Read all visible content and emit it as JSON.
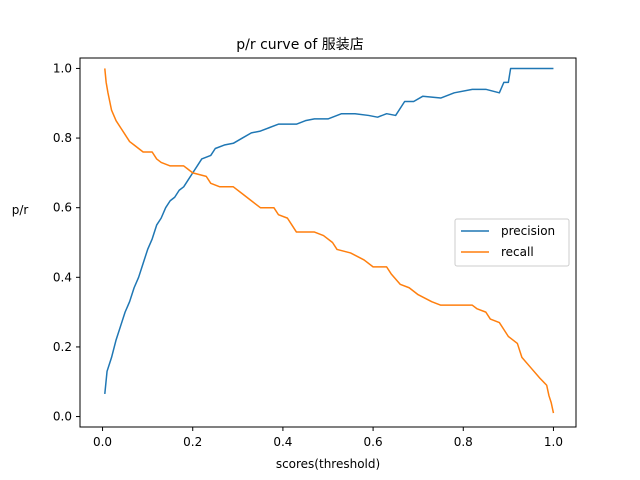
{
  "chart_data": {
    "type": "line",
    "title": "p/r curve of 服装店",
    "xlabel": "scores(threshold)",
    "ylabel": "p/r",
    "xlim": [
      -0.05,
      1.05
    ],
    "ylim": [
      -0.03,
      1.03
    ],
    "xticks": [
      0.0,
      0.2,
      0.4,
      0.6,
      0.8,
      1.0
    ],
    "xtick_labels": [
      "0.0",
      "0.2",
      "0.4",
      "0.6",
      "0.8",
      "1.0"
    ],
    "yticks": [
      0.0,
      0.2,
      0.4,
      0.6,
      0.8,
      1.0
    ],
    "ytick_labels": [
      "0.0",
      "0.2",
      "0.4",
      "0.6",
      "0.8",
      "1.0"
    ],
    "grid": false,
    "legend_position": "center-right",
    "series": [
      {
        "name": "precision",
        "color": "#1f77b4",
        "points": [
          [
            0.005,
            0.065
          ],
          [
            0.01,
            0.13
          ],
          [
            0.02,
            0.17
          ],
          [
            0.03,
            0.22
          ],
          [
            0.04,
            0.26
          ],
          [
            0.05,
            0.3
          ],
          [
            0.06,
            0.33
          ],
          [
            0.07,
            0.37
          ],
          [
            0.08,
            0.4
          ],
          [
            0.09,
            0.44
          ],
          [
            0.1,
            0.48
          ],
          [
            0.11,
            0.51
          ],
          [
            0.12,
            0.55
          ],
          [
            0.13,
            0.57
          ],
          [
            0.14,
            0.6
          ],
          [
            0.15,
            0.62
          ],
          [
            0.16,
            0.63
          ],
          [
            0.17,
            0.65
          ],
          [
            0.18,
            0.66
          ],
          [
            0.19,
            0.68
          ],
          [
            0.2,
            0.7
          ],
          [
            0.21,
            0.72
          ],
          [
            0.22,
            0.74
          ],
          [
            0.24,
            0.75
          ],
          [
            0.25,
            0.77
          ],
          [
            0.27,
            0.78
          ],
          [
            0.29,
            0.785
          ],
          [
            0.31,
            0.8
          ],
          [
            0.33,
            0.815
          ],
          [
            0.35,
            0.82
          ],
          [
            0.37,
            0.83
          ],
          [
            0.39,
            0.84
          ],
          [
            0.41,
            0.84
          ],
          [
            0.43,
            0.84
          ],
          [
            0.45,
            0.85
          ],
          [
            0.47,
            0.855
          ],
          [
            0.5,
            0.855
          ],
          [
            0.51,
            0.86
          ],
          [
            0.53,
            0.87
          ],
          [
            0.56,
            0.87
          ],
          [
            0.59,
            0.865
          ],
          [
            0.61,
            0.86
          ],
          [
            0.63,
            0.87
          ],
          [
            0.65,
            0.865
          ],
          [
            0.67,
            0.905
          ],
          [
            0.69,
            0.905
          ],
          [
            0.71,
            0.92
          ],
          [
            0.75,
            0.915
          ],
          [
            0.78,
            0.93
          ],
          [
            0.82,
            0.94
          ],
          [
            0.85,
            0.94
          ],
          [
            0.88,
            0.93
          ],
          [
            0.89,
            0.96
          ],
          [
            0.9,
            0.96
          ],
          [
            0.905,
            1.0
          ],
          [
            0.95,
            1.0
          ],
          [
            1.0,
            1.0
          ]
        ]
      },
      {
        "name": "recall",
        "color": "#ff7f0e",
        "points": [
          [
            0.005,
            1.0
          ],
          [
            0.008,
            0.96
          ],
          [
            0.012,
            0.93
          ],
          [
            0.02,
            0.88
          ],
          [
            0.03,
            0.85
          ],
          [
            0.04,
            0.83
          ],
          [
            0.05,
            0.81
          ],
          [
            0.06,
            0.79
          ],
          [
            0.07,
            0.78
          ],
          [
            0.08,
            0.77
          ],
          [
            0.09,
            0.76
          ],
          [
            0.11,
            0.76
          ],
          [
            0.12,
            0.74
          ],
          [
            0.13,
            0.73
          ],
          [
            0.15,
            0.72
          ],
          [
            0.18,
            0.72
          ],
          [
            0.19,
            0.71
          ],
          [
            0.2,
            0.7
          ],
          [
            0.23,
            0.69
          ],
          [
            0.24,
            0.67
          ],
          [
            0.26,
            0.66
          ],
          [
            0.29,
            0.66
          ],
          [
            0.31,
            0.64
          ],
          [
            0.33,
            0.62
          ],
          [
            0.35,
            0.6
          ],
          [
            0.38,
            0.6
          ],
          [
            0.39,
            0.58
          ],
          [
            0.41,
            0.57
          ],
          [
            0.42,
            0.55
          ],
          [
            0.43,
            0.53
          ],
          [
            0.47,
            0.53
          ],
          [
            0.49,
            0.52
          ],
          [
            0.51,
            0.5
          ],
          [
            0.52,
            0.48
          ],
          [
            0.55,
            0.47
          ],
          [
            0.58,
            0.45
          ],
          [
            0.6,
            0.43
          ],
          [
            0.63,
            0.43
          ],
          [
            0.64,
            0.41
          ],
          [
            0.66,
            0.38
          ],
          [
            0.68,
            0.37
          ],
          [
            0.7,
            0.35
          ],
          [
            0.73,
            0.33
          ],
          [
            0.75,
            0.32
          ],
          [
            0.82,
            0.32
          ],
          [
            0.83,
            0.31
          ],
          [
            0.85,
            0.3
          ],
          [
            0.86,
            0.28
          ],
          [
            0.88,
            0.27
          ],
          [
            0.89,
            0.25
          ],
          [
            0.9,
            0.23
          ],
          [
            0.92,
            0.21
          ],
          [
            0.93,
            0.17
          ],
          [
            0.95,
            0.14
          ],
          [
            0.97,
            0.11
          ],
          [
            0.985,
            0.09
          ],
          [
            0.99,
            0.06
          ],
          [
            0.995,
            0.04
          ],
          [
            1.0,
            0.01
          ]
        ]
      }
    ]
  }
}
